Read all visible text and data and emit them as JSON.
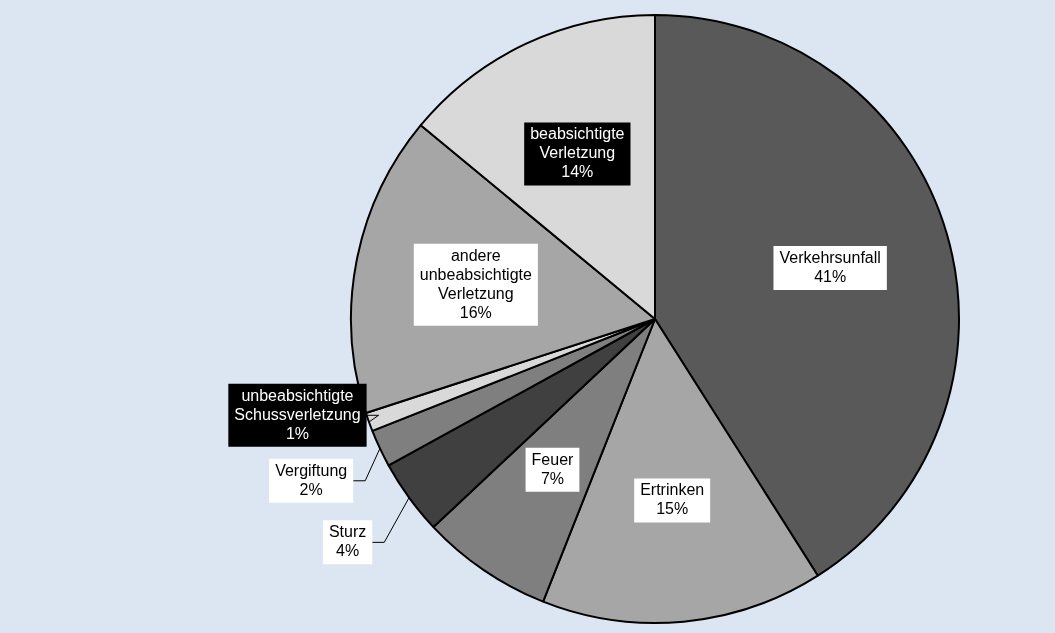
{
  "chart_data": {
    "type": "pie",
    "categories": [
      "Verkehrsunfall",
      "Ertrinken",
      "Feuer",
      "Sturz",
      "Vergiftung",
      "unbeabsichtigte Schussverletzung",
      "andere unbeabsichtigte Verletzung",
      "beabsichtigte Verletzung"
    ],
    "values": [
      41,
      15,
      7,
      4,
      2,
      1,
      16,
      14
    ],
    "colors": [
      "#595959",
      "#a6a6a6",
      "#7f7f7f",
      "#404040",
      "#7f7f7f",
      "#d9d9d9",
      "#a6a6a6",
      "#d9d9d9"
    ],
    "value_labels": [
      "41%",
      "15%",
      "7%",
      "4%",
      "2%",
      "1%",
      "16%",
      "14%"
    ],
    "legend": false
  }
}
